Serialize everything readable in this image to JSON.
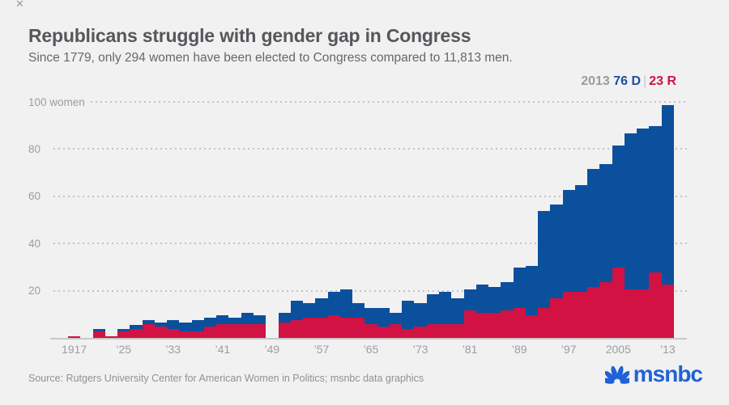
{
  "window": {
    "close_glyph": "✕"
  },
  "header": {
    "title": "Republicans struggle with gender gap in Congress",
    "subtitle": "Since 1779, only 294 women have been elected to Congress compared to 11,813 men."
  },
  "legend": {
    "year": "2013",
    "dem": "76 D",
    "divider": "|",
    "rep": "23 R"
  },
  "footer": {
    "source": "Source: Rutgers University Center for American Women in Politics; msnbc data graphics",
    "brand": "msnbc",
    "brand_icon": "nbc-peacock-icon"
  },
  "colors": {
    "dem_bar": "#0a509d",
    "rep_bar": "#d11243",
    "legend_year": "#9b9c9e",
    "brand_blue": "#1f62d5",
    "axis_text": "#9c9da0"
  },
  "chart_data": {
    "type": "bar",
    "stacked": true,
    "title": "Republicans struggle with gender gap in Congress",
    "xlabel": "",
    "ylabel": "women",
    "ylim": [
      0,
      100
    ],
    "grid": "dotted-horizontal",
    "legend_position": "top-right",
    "x": [
      1917,
      1919,
      1921,
      1923,
      1925,
      1927,
      1929,
      1931,
      1933,
      1935,
      1937,
      1939,
      1941,
      1943,
      1945,
      1947,
      1949,
      1951,
      1953,
      1955,
      1957,
      1959,
      1961,
      1963,
      1965,
      1967,
      1969,
      1971,
      1973,
      1975,
      1977,
      1979,
      1981,
      1983,
      1985,
      1987,
      1989,
      1991,
      1993,
      1995,
      1997,
      1999,
      2001,
      2003,
      2005,
      2007,
      2009,
      2011,
      2013
    ],
    "series": [
      {
        "name": "Republicans",
        "color": "#d11243",
        "stack_order": "bottom",
        "values": [
          1,
          0,
          3,
          1,
          3,
          4,
          6,
          5,
          4,
          3,
          3,
          5,
          6,
          6,
          6,
          6,
          0,
          7,
          8,
          9,
          9,
          10,
          9,
          9,
          6,
          5,
          6,
          4,
          5,
          6,
          6,
          6,
          12,
          11,
          11,
          12,
          13,
          10,
          13,
          17,
          20,
          20,
          22,
          24,
          30,
          21,
          21,
          28,
          23
        ]
      },
      {
        "name": "Democrats",
        "color": "#0a509d",
        "stack_order": "top",
        "values": [
          0,
          0,
          1,
          0,
          1,
          2,
          2,
          2,
          4,
          4,
          5,
          4,
          4,
          3,
          5,
          4,
          0,
          4,
          8,
          6,
          8,
          10,
          12,
          6,
          7,
          8,
          5,
          12,
          10,
          13,
          14,
          11,
          9,
          12,
          11,
          12,
          17,
          21,
          41,
          40,
          43,
          45,
          50,
          50,
          52,
          66,
          68,
          62,
          76
        ]
      }
    ],
    "y_ticks": [
      {
        "value": 100,
        "label": "100 women"
      },
      {
        "value": 80,
        "label": "80"
      },
      {
        "value": 60,
        "label": "60"
      },
      {
        "value": 40,
        "label": "40"
      },
      {
        "value": 20,
        "label": "20"
      }
    ],
    "x_tick_labels": [
      {
        "i": 0,
        "label": "1917"
      },
      {
        "i": 4,
        "label": "’25"
      },
      {
        "i": 8,
        "label": "’33"
      },
      {
        "i": 12,
        "label": "’41"
      },
      {
        "i": 16,
        "label": "’49"
      },
      {
        "i": 20,
        "label": "’57"
      },
      {
        "i": 24,
        "label": "’65"
      },
      {
        "i": 28,
        "label": "’73"
      },
      {
        "i": 32,
        "label": "’81"
      },
      {
        "i": 36,
        "label": "’89"
      },
      {
        "i": 40,
        "label": "’97"
      },
      {
        "i": 44,
        "label": "2005"
      },
      {
        "i": 48,
        "label": "’13"
      }
    ]
  }
}
